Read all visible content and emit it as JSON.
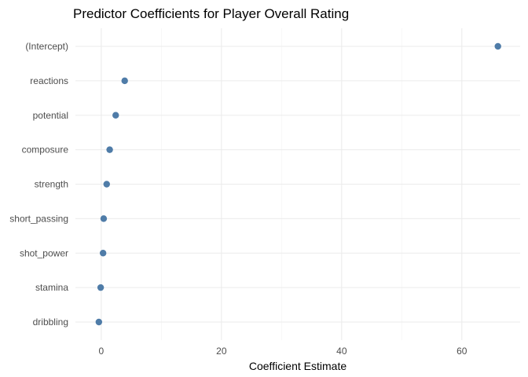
{
  "chart_data": {
    "type": "scatter",
    "title": "Predictor Coefficients for Player Overall Rating",
    "xlabel": "Coefficient Estimate",
    "ylabel": "",
    "xlim": [
      -4.3,
      69.7
    ],
    "x_ticks": [
      0,
      20,
      40,
      60
    ],
    "grid": true,
    "legend": "none",
    "point_color": "#4F7CA8",
    "categories": [
      "(Intercept)",
      "reactions",
      "potential",
      "composure",
      "strength",
      "short_passing",
      "shot_power",
      "stamina",
      "dribbling"
    ],
    "values": [
      66.0,
      3.9,
      2.4,
      1.4,
      0.9,
      0.4,
      0.3,
      -0.1,
      -0.4
    ]
  }
}
